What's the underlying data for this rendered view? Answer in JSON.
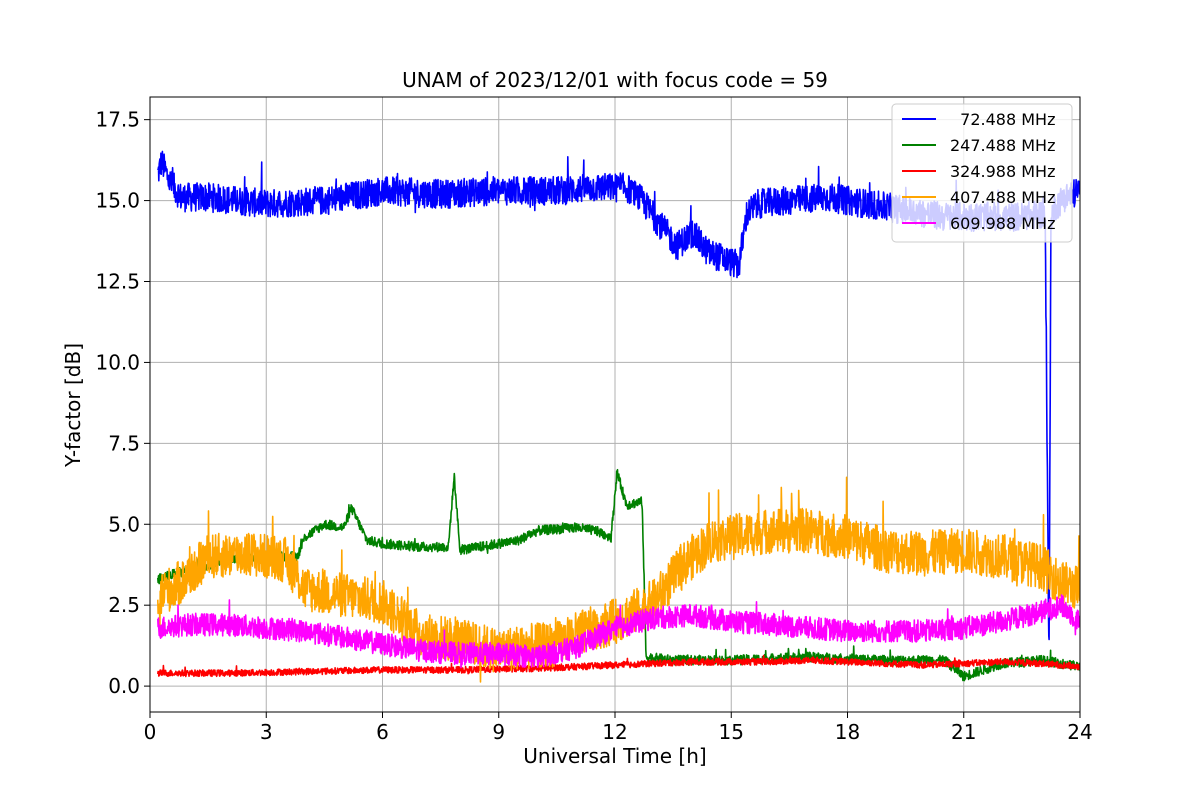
{
  "chart_data": {
    "type": "line",
    "title": "UNAM of 2023/12/01 with focus code = 59",
    "xlabel": "Universal Time [h]",
    "ylabel": "Y-factor [dB]",
    "xlim": [
      0,
      24
    ],
    "ylim": [
      -0.8,
      18.2
    ],
    "xticks": [
      0,
      3,
      6,
      9,
      12,
      15,
      18,
      21,
      24
    ],
    "xtick_labels": [
      "0",
      "3",
      "6",
      "9",
      "12",
      "15",
      "18",
      "21",
      "24"
    ],
    "yticks": [
      0.0,
      2.5,
      5.0,
      7.5,
      10.0,
      12.5,
      15.0,
      17.5
    ],
    "ytick_labels": [
      "0.0",
      "2.5",
      "5.0",
      "7.5",
      "10.0",
      "12.5",
      "15.0",
      "17.5"
    ],
    "grid": true,
    "legend_position": "top-right",
    "series": [
      {
        "name": "  72.488 MHz",
        "color": "#0000ff",
        "noise": 0.45,
        "x": [
          0.2,
          0.3,
          0.5,
          0.8,
          1.5,
          3,
          4.5,
          6,
          7.5,
          9,
          10.5,
          11.5,
          12.3,
          12.7,
          13.2,
          13.6,
          14.0,
          14.4,
          14.8,
          15.2,
          15.4,
          15.7,
          16.5,
          17.5,
          18.5,
          19.5,
          20.5,
          21.5,
          22.5,
          23.1,
          23.2,
          23.25,
          23.35,
          23.6,
          24.0
        ],
        "y": [
          15.8,
          16.2,
          15.6,
          15.1,
          15.1,
          14.9,
          15.0,
          15.3,
          15.2,
          15.3,
          15.3,
          15.4,
          15.4,
          15.0,
          14.2,
          13.6,
          14.0,
          13.4,
          13.2,
          13.0,
          14.6,
          14.9,
          15.0,
          15.1,
          14.9,
          14.7,
          14.5,
          14.5,
          14.5,
          14.6,
          0.5,
          14.5,
          14.8,
          15.1,
          15.3
        ]
      },
      {
        "name": "247.488 MHz",
        "color": "#008000",
        "noise": 0.15,
        "x": [
          0.2,
          1.0,
          2.0,
          3.0,
          3.8,
          4.0,
          4.5,
          5.0,
          5.2,
          5.4,
          5.6,
          6.0,
          7.0,
          7.7,
          7.85,
          8.0,
          8.5,
          9.5,
          10.0,
          11.0,
          11.5,
          11.9,
          12.05,
          12.3,
          12.7,
          12.8,
          13.5,
          15.0,
          17.0,
          19.0,
          20.5,
          21.0,
          22.0,
          23.0,
          24.0
        ],
        "y": [
          3.3,
          3.6,
          3.9,
          4.0,
          4.0,
          4.6,
          5.0,
          4.9,
          5.5,
          5.0,
          4.5,
          4.4,
          4.3,
          4.3,
          6.5,
          4.2,
          4.3,
          4.5,
          4.8,
          4.9,
          4.8,
          4.6,
          6.6,
          5.6,
          5.7,
          0.9,
          0.8,
          0.8,
          0.9,
          0.8,
          0.8,
          0.3,
          0.7,
          0.8,
          0.6
        ]
      },
      {
        "name": "324.988 MHz",
        "color": "#ff0000",
        "noise": 0.1,
        "x": [
          0.2,
          2,
          4,
          6,
          8,
          10,
          11,
          12,
          13,
          14,
          15,
          16,
          17,
          18,
          19,
          20,
          21,
          22,
          23,
          24
        ],
        "y": [
          0.4,
          0.4,
          0.45,
          0.5,
          0.5,
          0.55,
          0.6,
          0.65,
          0.7,
          0.75,
          0.75,
          0.75,
          0.8,
          0.75,
          0.7,
          0.65,
          0.7,
          0.75,
          0.7,
          0.6
        ]
      },
      {
        "name": "407.488 MHz",
        "color": "#ffa500",
        "noise": 0.7,
        "x": [
          0.2,
          0.8,
          1.5,
          2.5,
          3.5,
          4.0,
          5.0,
          6.0,
          7.0,
          8.0,
          9.0,
          9.5,
          10.5,
          11.0,
          12.0,
          13.0,
          13.8,
          14.5,
          15.0,
          16.0,
          17.0,
          18.0,
          19.0,
          20.0,
          21.0,
          22.0,
          23.0,
          23.5,
          24.0
        ],
        "y": [
          2.8,
          3.2,
          4.0,
          4.1,
          3.9,
          3.0,
          2.8,
          2.6,
          1.6,
          1.4,
          1.1,
          1.2,
          1.3,
          1.6,
          2.0,
          2.6,
          3.8,
          4.5,
          4.6,
          4.8,
          4.8,
          4.6,
          4.2,
          4.1,
          4.2,
          4.0,
          3.7,
          3.2,
          3.0
        ]
      },
      {
        "name": "609.988 MHz",
        "color": "#ff00ff",
        "noise": 0.35,
        "x": [
          0.2,
          1,
          2,
          3,
          4,
          5,
          6,
          7,
          8,
          9,
          10,
          11,
          12,
          13,
          14,
          15,
          16,
          17,
          18,
          19,
          20,
          21,
          22,
          23,
          23.5,
          24
        ],
        "y": [
          1.8,
          1.9,
          1.9,
          1.8,
          1.7,
          1.5,
          1.3,
          1.1,
          1.0,
          1.0,
          0.9,
          1.2,
          1.8,
          2.1,
          2.2,
          2.0,
          1.9,
          1.8,
          1.7,
          1.7,
          1.7,
          1.8,
          2.0,
          2.3,
          2.5,
          2.0
        ]
      }
    ]
  }
}
